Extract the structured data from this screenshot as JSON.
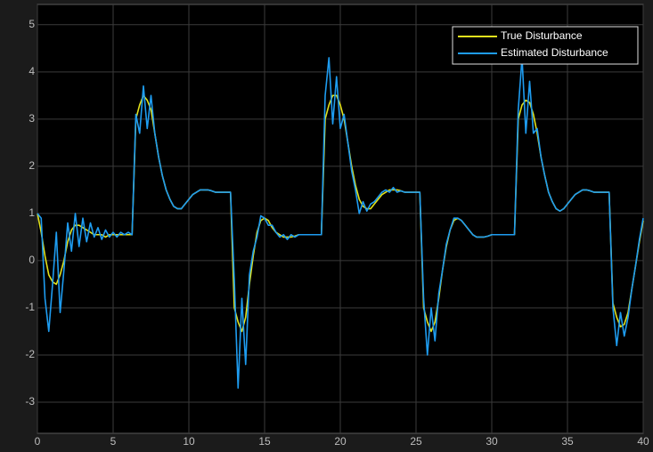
{
  "chart_data": {
    "type": "line",
    "x": [
      0,
      0.25,
      0.5,
      0.75,
      1,
      1.25,
      1.5,
      1.75,
      2,
      2.25,
      2.5,
      2.75,
      3,
      3.25,
      3.5,
      3.75,
      4,
      4.25,
      4.5,
      4.75,
      5,
      5.25,
      5.5,
      5.75,
      6,
      6.25,
      6.5,
      6.75,
      7,
      7.25,
      7.5,
      7.75,
      8,
      8.25,
      8.5,
      8.75,
      9,
      9.25,
      9.5,
      9.75,
      10,
      10.25,
      10.5,
      10.75,
      11,
      11.25,
      11.5,
      11.75,
      12,
      12.25,
      12.5,
      12.75,
      13,
      13.25,
      13.5,
      13.75,
      14,
      14.25,
      14.5,
      14.75,
      15,
      15.25,
      15.5,
      15.75,
      16,
      16.25,
      16.5,
      16.75,
      17,
      17.25,
      17.5,
      17.75,
      18,
      18.25,
      18.5,
      18.75,
      19,
      19.25,
      19.5,
      19.75,
      20,
      20.25,
      20.5,
      20.75,
      21,
      21.25,
      21.5,
      21.75,
      22,
      22.25,
      22.5,
      22.75,
      23,
      23.25,
      23.5,
      23.75,
      24,
      24.25,
      24.5,
      24.75,
      25,
      25.25,
      25.5,
      25.75,
      26,
      26.25,
      26.5,
      26.75,
      27,
      27.25,
      27.5,
      27.75,
      28,
      28.25,
      28.5,
      28.75,
      29,
      29.25,
      29.5,
      29.75,
      30,
      30.25,
      30.5,
      30.75,
      31,
      31.25,
      31.5,
      31.75,
      32,
      32.25,
      32.5,
      32.75,
      33,
      33.25,
      33.5,
      33.75,
      34,
      34.25,
      34.5,
      34.75,
      35,
      35.25,
      35.5,
      35.75,
      36,
      36.25,
      36.5,
      36.75,
      37,
      37.25,
      37.5,
      37.75,
      38,
      38.25,
      38.5,
      38.75,
      39,
      39.25,
      39.5,
      39.75,
      40
    ],
    "series": [
      {
        "name": "True Disturbance",
        "color": "#e1e21c",
        "values": [
          1.0,
          0.6,
          0.1,
          -0.3,
          -0.45,
          -0.5,
          -0.3,
          0.0,
          0.4,
          0.65,
          0.75,
          0.75,
          0.7,
          0.65,
          0.6,
          0.55,
          0.55,
          0.55,
          0.5,
          0.55,
          0.55,
          0.55,
          0.55,
          0.55,
          0.55,
          0.55,
          3.0,
          3.3,
          3.5,
          3.4,
          3.2,
          2.7,
          2.2,
          1.8,
          1.5,
          1.3,
          1.15,
          1.1,
          1.1,
          1.2,
          1.3,
          1.4,
          1.45,
          1.5,
          1.5,
          1.5,
          1.48,
          1.45,
          1.45,
          1.45,
          1.45,
          1.45,
          -1.0,
          -1.3,
          -1.5,
          -1.2,
          -0.5,
          0.1,
          0.6,
          0.85,
          0.9,
          0.85,
          0.7,
          0.6,
          0.55,
          0.5,
          0.5,
          0.5,
          0.52,
          0.55,
          0.55,
          0.55,
          0.55,
          0.55,
          0.55,
          0.55,
          3.0,
          3.3,
          3.5,
          3.5,
          3.3,
          3.0,
          2.5,
          2.0,
          1.6,
          1.3,
          1.15,
          1.1,
          1.1,
          1.2,
          1.3,
          1.4,
          1.45,
          1.5,
          1.5,
          1.5,
          1.48,
          1.45,
          1.45,
          1.45,
          1.45,
          1.45,
          -1.0,
          -1.3,
          -1.5,
          -1.3,
          -0.8,
          -0.2,
          0.3,
          0.65,
          0.85,
          0.9,
          0.85,
          0.75,
          0.65,
          0.55,
          0.5,
          0.5,
          0.5,
          0.52,
          0.55,
          0.55,
          0.55,
          0.55,
          0.55,
          0.55,
          0.55,
          3.0,
          3.3,
          3.4,
          3.35,
          3.1,
          2.7,
          2.2,
          1.8,
          1.45,
          1.25,
          1.1,
          1.05,
          1.1,
          1.2,
          1.3,
          1.4,
          1.45,
          1.5,
          1.5,
          1.48,
          1.45,
          1.45,
          1.45,
          1.45,
          1.45,
          -0.9,
          -1.2,
          -1.4,
          -1.35,
          -1.1,
          -0.6,
          -0.1,
          0.4,
          0.85
        ]
      },
      {
        "name": "Estimated Disturbance",
        "color": "#1e9cf0",
        "values": [
          1.0,
          0.9,
          -0.8,
          -1.5,
          -0.5,
          0.6,
          -1.1,
          -0.2,
          0.8,
          0.2,
          1.0,
          0.3,
          0.9,
          0.4,
          0.8,
          0.5,
          0.7,
          0.45,
          0.65,
          0.5,
          0.6,
          0.5,
          0.6,
          0.55,
          0.6,
          0.55,
          3.1,
          2.7,
          3.7,
          2.8,
          3.5,
          2.7,
          2.2,
          1.8,
          1.5,
          1.3,
          1.15,
          1.1,
          1.1,
          1.2,
          1.3,
          1.4,
          1.45,
          1.5,
          1.5,
          1.5,
          1.48,
          1.45,
          1.45,
          1.45,
          1.45,
          1.45,
          -0.4,
          -2.7,
          -0.8,
          -2.2,
          -0.3,
          0.2,
          0.5,
          0.95,
          0.9,
          0.75,
          0.75,
          0.6,
          0.5,
          0.55,
          0.45,
          0.55,
          0.5,
          0.55,
          0.55,
          0.55,
          0.55,
          0.55,
          0.55,
          0.55,
          3.5,
          4.3,
          2.9,
          3.9,
          2.8,
          3.1,
          2.5,
          1.9,
          1.5,
          1.0,
          1.25,
          1.05,
          1.2,
          1.25,
          1.35,
          1.45,
          1.5,
          1.45,
          1.55,
          1.45,
          1.48,
          1.45,
          1.45,
          1.45,
          1.45,
          1.45,
          -0.8,
          -2.0,
          -1.0,
          -1.7,
          -0.7,
          -0.2,
          0.35,
          0.65,
          0.9,
          0.9,
          0.85,
          0.75,
          0.65,
          0.55,
          0.5,
          0.5,
          0.5,
          0.52,
          0.55,
          0.55,
          0.55,
          0.55,
          0.55,
          0.55,
          0.55,
          3.2,
          4.3,
          2.7,
          3.8,
          2.7,
          2.8,
          2.2,
          1.8,
          1.45,
          1.25,
          1.1,
          1.05,
          1.1,
          1.2,
          1.3,
          1.4,
          1.45,
          1.5,
          1.5,
          1.48,
          1.45,
          1.45,
          1.45,
          1.45,
          1.45,
          -1.0,
          -1.8,
          -1.1,
          -1.6,
          -1.2,
          -0.6,
          -0.1,
          0.45,
          0.9
        ]
      }
    ],
    "xlim": [
      0,
      40
    ],
    "xticks": [
      0,
      5,
      10,
      15,
      20,
      25,
      30,
      35,
      40
    ],
    "ylim": [
      -3.66,
      5.43
    ],
    "yticks": [
      -3,
      -2,
      -1,
      0,
      1,
      2,
      3,
      4,
      5
    ],
    "grid": true,
    "legend": "northeast"
  }
}
